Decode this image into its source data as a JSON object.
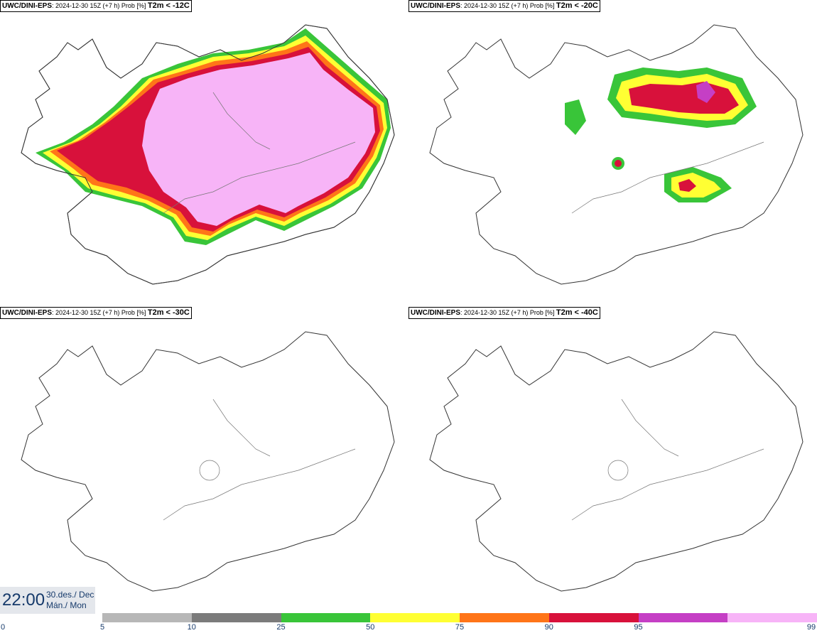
{
  "panels": [
    {
      "model": "UWC/DINI-EPS",
      "run_info": "2024-12-30 15Z (+7 h) Prob [%]",
      "variable": "T2m < -12C"
    },
    {
      "model": "UWC/DINI-EPS",
      "run_info": "2024-12-30 15Z (+7 h) Prob [%]",
      "variable": "T2m < -20C"
    },
    {
      "model": "UWC/DINI-EPS",
      "run_info": "2024-12-30 15Z (+7 h) Prob [%]",
      "variable": "T2m < -30C"
    },
    {
      "model": "UWC/DINI-EPS",
      "run_info": "2024-12-30 15Z (+7 h) Prob [%]",
      "variable": "T2m < -40C"
    }
  ],
  "valid_time": {
    "hour": "22:00",
    "date_line1": "30.des./ Dec",
    "date_line2": "Mán./ Mon"
  },
  "colorbar": {
    "ticks": [
      "0",
      "5",
      "10",
      "25",
      "50",
      "75",
      "90",
      "95",
      "99"
    ],
    "colors": [
      "#b7b7b7",
      "#7b7b7b",
      "#39c539",
      "#ffff33",
      "#ff7518",
      "#d8113b",
      "#c53fc5",
      "#f7b4f7"
    ]
  }
}
